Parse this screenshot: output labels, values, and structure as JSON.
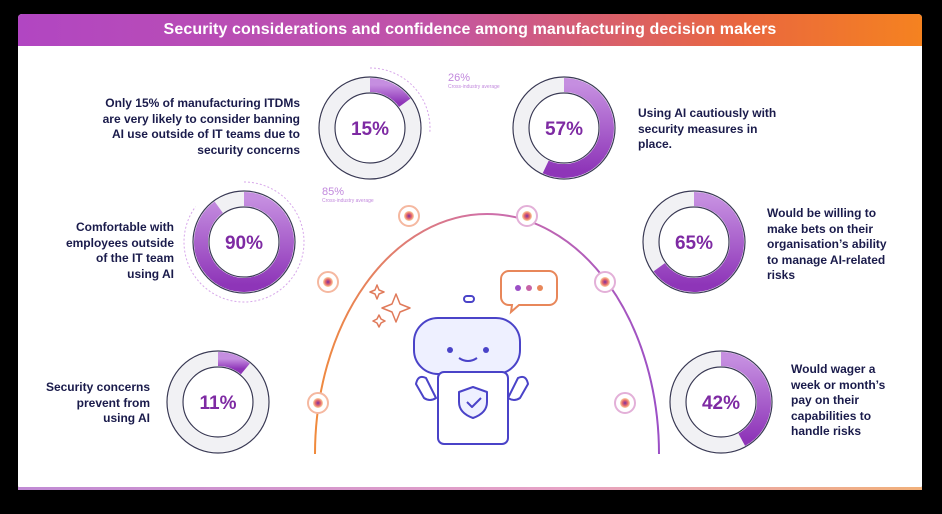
{
  "title": "Security considerations and confidence among manufacturing decision makers",
  "colors": {
    "accent": "#8e35b8",
    "light_accent": "#c58ee0",
    "track": "#f1f1f4",
    "text": "#1a1b4b"
  },
  "chart_data": [
    {
      "type": "pie",
      "value": 15,
      "label": "15%",
      "text": "Only 15% of manufacturing ITDMs are very likely to consider banning AI use outside of IT teams due to security concerns",
      "average": {
        "value": 26,
        "label": "26%",
        "caption": "Cross-industry average"
      }
    },
    {
      "type": "pie",
      "value": 57,
      "label": "57%",
      "text": "Using AI cautiously with security measures in place."
    },
    {
      "type": "pie",
      "value": 90,
      "label": "90%",
      "text": "Comfortable with employees outside of the IT team using AI",
      "average": {
        "value": 85,
        "label": "85%",
        "caption": "Cross-industry average"
      }
    },
    {
      "type": "pie",
      "value": 65,
      "label": "65%",
      "text": "Would be willing to make bets on their organisation’s ability to manage AI-related risks"
    },
    {
      "type": "pie",
      "value": 11,
      "label": "11%",
      "text": "Security concerns prevent from using AI"
    },
    {
      "type": "pie",
      "value": 42,
      "label": "42%",
      "text": "Would wager a week or month’s pay on their capabilities to handle risks"
    }
  ]
}
